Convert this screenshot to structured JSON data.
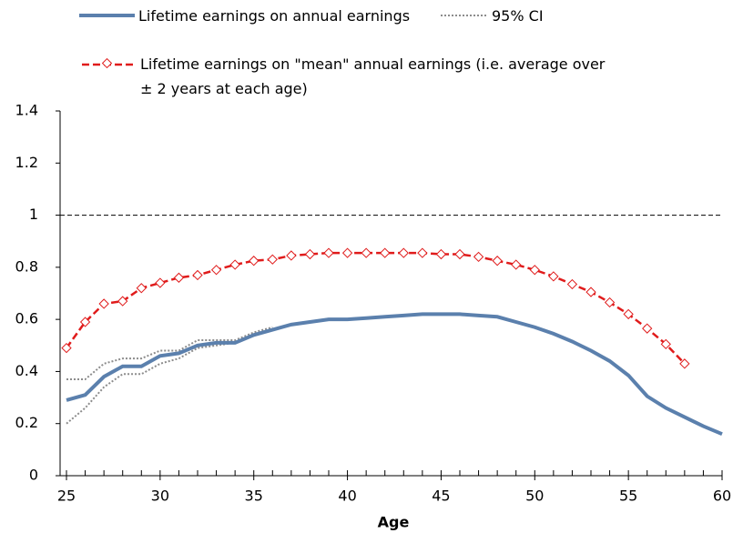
{
  "chart_data": {
    "type": "line",
    "xlabel": "Age",
    "x": [
      25,
      26,
      27,
      28,
      29,
      30,
      31,
      32,
      33,
      34,
      35,
      36,
      37,
      38,
      39,
      40,
      41,
      42,
      43,
      44,
      45,
      46,
      47,
      48,
      49,
      50,
      51,
      52,
      53,
      54,
      55,
      56,
      57,
      58,
      59,
      60
    ],
    "xlim": [
      25,
      60
    ],
    "xticks": [
      25,
      30,
      35,
      40,
      45,
      50,
      55,
      60
    ],
    "ylim": [
      0,
      1.4
    ],
    "yticks": [
      0,
      0.2,
      0.4,
      0.6,
      0.8,
      1,
      1.2,
      1.4
    ],
    "reference_line": 1,
    "series": [
      {
        "name": "Lifetime earnings on annual earnings",
        "color": "#5b80ad",
        "values": [
          0.29,
          0.31,
          0.38,
          0.42,
          0.42,
          0.46,
          0.47,
          0.5,
          0.51,
          0.51,
          0.54,
          0.56,
          0.58,
          0.59,
          0.6,
          0.6,
          0.605,
          0.61,
          0.615,
          0.62,
          0.62,
          0.62,
          0.615,
          0.61,
          0.59,
          0.57,
          0.545,
          0.515,
          0.48,
          0.44,
          0.385,
          0.305,
          0.26,
          0.225,
          0.19,
          0.16
        ]
      },
      {
        "name": "Lifetime earnings on \"mean\" annual earnings (i.e. average over ± 2 years at each age)",
        "color": "#e01b1b",
        "values": [
          0.49,
          0.59,
          0.66,
          0.67,
          0.72,
          0.74,
          0.76,
          0.77,
          0.79,
          0.81,
          0.825,
          0.83,
          0.845,
          0.85,
          0.855,
          0.855,
          0.855,
          0.855,
          0.855,
          0.855,
          0.85,
          0.85,
          0.84,
          0.825,
          0.81,
          0.79,
          0.765,
          0.735,
          0.705,
          0.665,
          0.62,
          0.565,
          0.505,
          0.43,
          null,
          null
        ]
      }
    ],
    "ci": {
      "name": "95% CI",
      "color": "#8c8c8c",
      "upper": [
        0.37,
        0.37,
        0.43,
        0.45,
        0.45,
        0.48,
        0.48,
        0.52,
        0.52,
        0.52,
        0.55,
        0.57,
        null,
        null,
        null,
        null,
        null,
        null,
        null,
        null,
        null,
        null,
        null,
        null,
        null,
        null,
        null,
        null,
        null,
        null,
        null,
        null,
        null,
        null,
        null,
        null
      ],
      "lower": [
        0.2,
        0.26,
        0.34,
        0.39,
        0.39,
        0.43,
        0.45,
        0.49,
        0.5,
        0.51,
        0.54,
        0.56,
        null,
        null,
        null,
        null,
        null,
        null,
        null,
        null,
        null,
        null,
        null,
        null,
        null,
        null,
        null,
        null,
        null,
        null,
        null,
        null,
        null,
        null,
        null,
        null
      ]
    }
  }
}
